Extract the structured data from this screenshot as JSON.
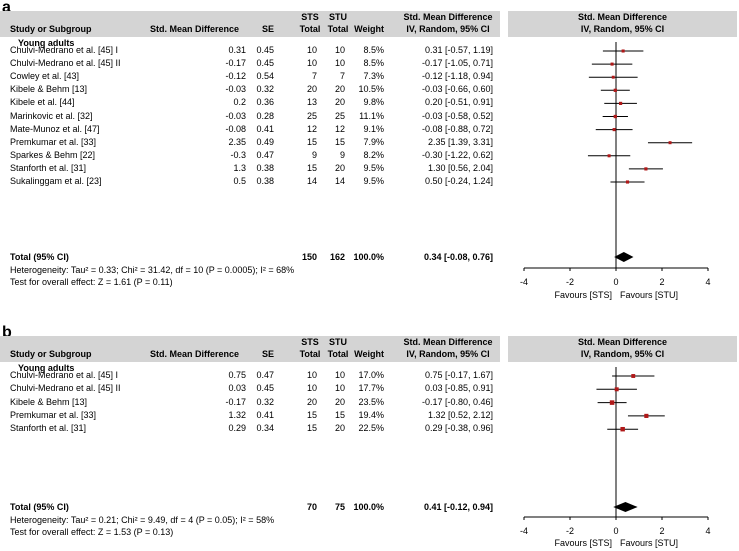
{
  "headers": {
    "study": "Study or Subgroup",
    "smd": "Std. Mean Difference",
    "se": "SE",
    "sts_top": "STS",
    "sts_bottom": "Total",
    "stu_top": "STU",
    "stu_bottom": "Total",
    "weight": "Weight",
    "ci_top": "Std. Mean Difference",
    "ci_bottom": "IV, Random, 95% CI",
    "plot_top": "Std. Mean Difference",
    "plot_bottom": "IV, Random, 95% CI"
  },
  "panels": [
    {
      "letter": "a",
      "subgroup": "Young adults",
      "studies": [
        {
          "name": "Chulvi-Medrano et al. [45] I",
          "smd": "0.31",
          "se": "0.45",
          "sts": "10",
          "stu": "10",
          "weight": "8.5%",
          "ci": "0.31 [-0.57, 1.19]"
        },
        {
          "name": "Chulvi-Medrano et al. [45] II",
          "smd": "-0.17",
          "se": "0.45",
          "sts": "10",
          "stu": "10",
          "weight": "8.5%",
          "ci": "-0.17 [-1.05, 0.71]"
        },
        {
          "name": "Cowley et al. [43]",
          "smd": "-0.12",
          "se": "0.54",
          "sts": "7",
          "stu": "7",
          "weight": "7.3%",
          "ci": "-0.12 [-1.18, 0.94]"
        },
        {
          "name": "Kibele & Behm [13]",
          "smd": "-0.03",
          "se": "0.32",
          "sts": "20",
          "stu": "20",
          "weight": "10.5%",
          "ci": "-0.03 [-0.66, 0.60]"
        },
        {
          "name": "Kibele et al. [44]",
          "smd": "0.2",
          "se": "0.36",
          "sts": "13",
          "stu": "20",
          "weight": "9.8%",
          "ci": "0.20 [-0.51, 0.91]"
        },
        {
          "name": "Marinkovic et al. [32]",
          "smd": "-0.03",
          "se": "0.28",
          "sts": "25",
          "stu": "25",
          "weight": "11.1%",
          "ci": "-0.03 [-0.58, 0.52]"
        },
        {
          "name": "Mate-Munoz et al. [47]",
          "smd": "-0.08",
          "se": "0.41",
          "sts": "12",
          "stu": "12",
          "weight": "9.1%",
          "ci": "-0.08 [-0.88, 0.72]"
        },
        {
          "name": "Premkumar et al. [33]",
          "smd": "2.35",
          "se": "0.49",
          "sts": "15",
          "stu": "15",
          "weight": "7.9%",
          "ci": "2.35 [1.39, 3.31]"
        },
        {
          "name": "Sparkes & Behm [22]",
          "smd": "-0.3",
          "se": "0.47",
          "sts": "9",
          "stu": "9",
          "weight": "8.2%",
          "ci": "-0.30 [-1.22, 0.62]"
        },
        {
          "name": "Stanforth et al. [31]",
          "smd": "1.3",
          "se": "0.38",
          "sts": "15",
          "stu": "20",
          "weight": "9.5%",
          "ci": "1.30 [0.56, 2.04]"
        },
        {
          "name": "Sukalinggam et al. [23]",
          "smd": "0.5",
          "se": "0.38",
          "sts": "14",
          "stu": "14",
          "weight": "9.5%",
          "ci": "0.50 [-0.24, 1.24]"
        }
      ],
      "total": {
        "label": "Total (95% CI)",
        "sts": "150",
        "stu": "162",
        "weight": "100.0%",
        "ci": "0.34 [-0.08, 0.76]"
      },
      "heterogeneity": "Heterogeneity: Tau² = 0.33; Chi² = 31.42, df = 10 (P = 0.0005); I² = 68%",
      "overall_effect": "Test for overall effect: Z = 1.61 (P = 0.11)"
    },
    {
      "letter": "b",
      "subgroup": "Young adults",
      "studies": [
        {
          "name": "Chulvi-Medrano et al. [45] I",
          "smd": "0.75",
          "se": "0.47",
          "sts": "10",
          "stu": "10",
          "weight": "17.0%",
          "ci": "0.75 [-0.17, 1.67]"
        },
        {
          "name": "Chulvi-Medrano et al. [45] II",
          "smd": "0.03",
          "se": "0.45",
          "sts": "10",
          "stu": "10",
          "weight": "17.7%",
          "ci": "0.03 [-0.85, 0.91]"
        },
        {
          "name": "Kibele & Behm [13]",
          "smd": "-0.17",
          "se": "0.32",
          "sts": "20",
          "stu": "20",
          "weight": "23.5%",
          "ci": "-0.17 [-0.80, 0.46]"
        },
        {
          "name": "Premkumar et al. [33]",
          "smd": "1.32",
          "se": "0.41",
          "sts": "15",
          "stu": "15",
          "weight": "19.4%",
          "ci": "1.32 [0.52, 2.12]"
        },
        {
          "name": "Stanforth et al. [31]",
          "smd": "0.29",
          "se": "0.34",
          "sts": "15",
          "stu": "20",
          "weight": "22.5%",
          "ci": "0.29 [-0.38, 0.96]"
        }
      ],
      "total": {
        "label": "Total (95% CI)",
        "sts": "70",
        "stu": "75",
        "weight": "100.0%",
        "ci": "0.41 [-0.12, 0.94]"
      },
      "heterogeneity": "Heterogeneity: Tau² = 0.21; Chi² = 9.49, df = 4 (P = 0.05); I² = 58%",
      "overall_effect": "Test for overall effect: Z = 1.53 (P = 0.13)"
    }
  ],
  "chart_data": [
    {
      "type": "forest",
      "title": "a",
      "xlabel_left": "Favours [STS]",
      "xlabel_right": "Favours [STU]",
      "xlim": [
        -4,
        4
      ],
      "ticks": [
        "-4",
        "-2",
        "0",
        "2",
        "4"
      ],
      "tick_values": [
        -4,
        -2,
        0,
        2,
        4
      ],
      "studies": [
        {
          "name": "Chulvi-Medrano et al. [45] I",
          "est": 0.31,
          "lo": -0.57,
          "hi": 1.19,
          "weight": 8.5
        },
        {
          "name": "Chulvi-Medrano et al. [45] II",
          "est": -0.17,
          "lo": -1.05,
          "hi": 0.71,
          "weight": 8.5
        },
        {
          "name": "Cowley et al. [43]",
          "est": -0.12,
          "lo": -1.18,
          "hi": 0.94,
          "weight": 7.3
        },
        {
          "name": "Kibele & Behm [13]",
          "est": -0.03,
          "lo": -0.66,
          "hi": 0.6,
          "weight": 10.5
        },
        {
          "name": "Kibele et al. [44]",
          "est": 0.2,
          "lo": -0.51,
          "hi": 0.91,
          "weight": 9.8
        },
        {
          "name": "Marinkovic et al. [32]",
          "est": -0.03,
          "lo": -0.58,
          "hi": 0.52,
          "weight": 11.1
        },
        {
          "name": "Mate-Munoz et al. [47]",
          "est": -0.08,
          "lo": -0.88,
          "hi": 0.72,
          "weight": 9.1
        },
        {
          "name": "Premkumar et al. [33]",
          "est": 2.35,
          "lo": 1.39,
          "hi": 3.31,
          "weight": 7.9
        },
        {
          "name": "Sparkes & Behm [22]",
          "est": -0.3,
          "lo": -1.22,
          "hi": 0.62,
          "weight": 8.2
        },
        {
          "name": "Stanforth et al. [31]",
          "est": 1.3,
          "lo": 0.56,
          "hi": 2.04,
          "weight": 9.5
        },
        {
          "name": "Sukalinggam et al. [23]",
          "est": 0.5,
          "lo": -0.24,
          "hi": 1.24,
          "weight": 9.5
        }
      ],
      "pooled": {
        "est": 0.34,
        "lo": -0.08,
        "hi": 0.76
      }
    },
    {
      "type": "forest",
      "title": "b",
      "xlabel_left": "Favours [STS]",
      "xlabel_right": "Favours [STU]",
      "xlim": [
        -4,
        4
      ],
      "ticks": [
        "-4",
        "-2",
        "0",
        "2",
        "4"
      ],
      "tick_values": [
        -4,
        -2,
        0,
        2,
        4
      ],
      "studies": [
        {
          "name": "Chulvi-Medrano et al. [45] I",
          "est": 0.75,
          "lo": -0.17,
          "hi": 1.67,
          "weight": 17.0
        },
        {
          "name": "Chulvi-Medrano et al. [45] II",
          "est": 0.03,
          "lo": -0.85,
          "hi": 0.91,
          "weight": 17.7
        },
        {
          "name": "Kibele & Behm [13]",
          "est": -0.17,
          "lo": -0.8,
          "hi": 0.46,
          "weight": 23.5
        },
        {
          "name": "Premkumar et al. [33]",
          "est": 1.32,
          "lo": 0.52,
          "hi": 2.12,
          "weight": 19.4
        },
        {
          "name": "Stanforth et al. [31]",
          "est": 0.29,
          "lo": -0.38,
          "hi": 0.96,
          "weight": 22.5
        }
      ],
      "pooled": {
        "est": 0.41,
        "lo": -0.12,
        "hi": 0.94
      }
    }
  ]
}
